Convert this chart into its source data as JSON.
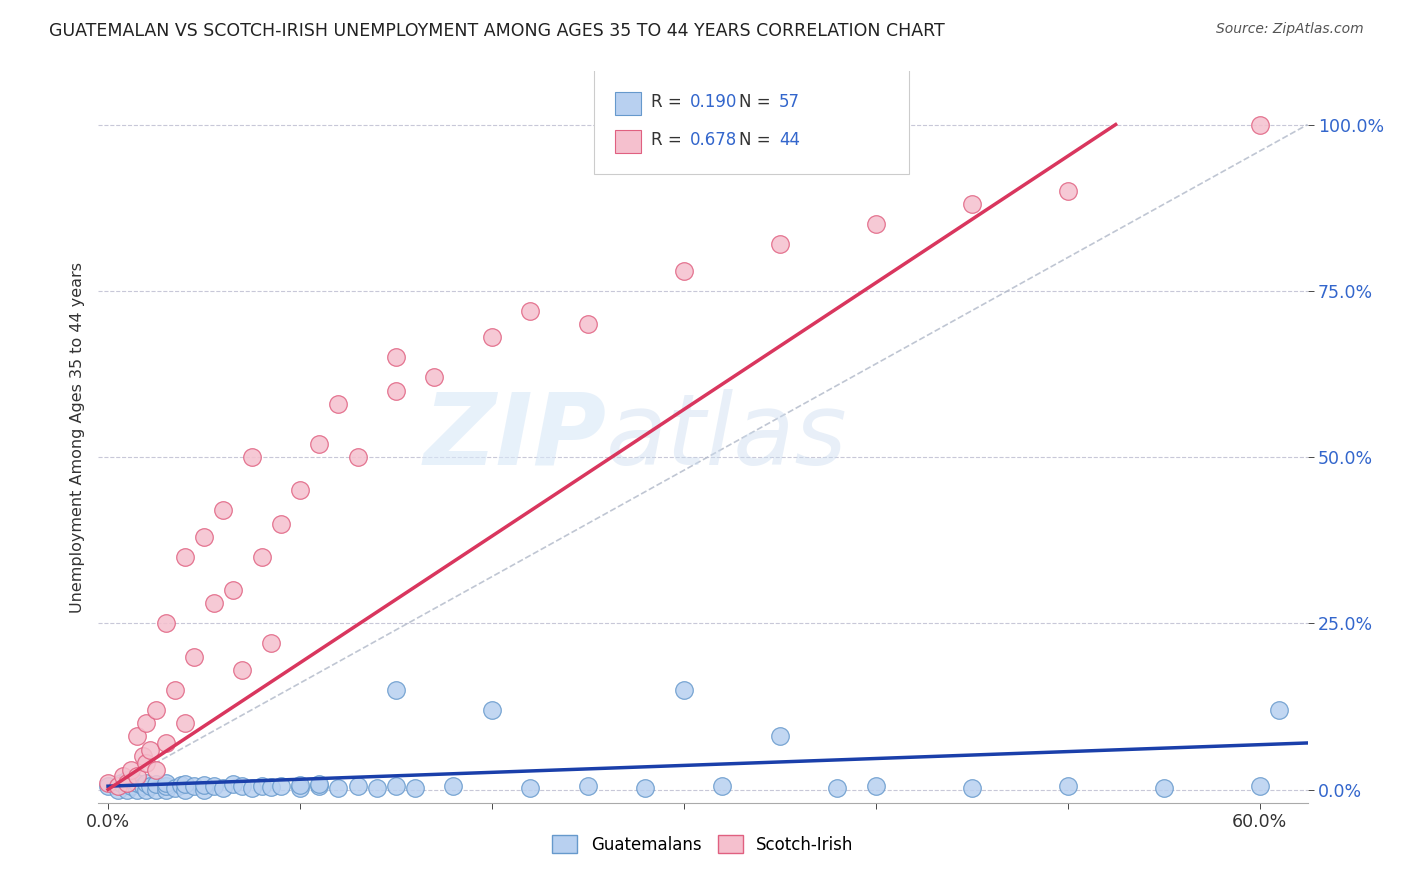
{
  "title": "GUATEMALAN VS SCOTCH-IRISH UNEMPLOYMENT AMONG AGES 35 TO 44 YEARS CORRELATION CHART",
  "source": "Source: ZipAtlas.com",
  "ylabel": "Unemployment Among Ages 35 to 44 years",
  "ytick_labels": [
    "0.0%",
    "25.0%",
    "50.0%",
    "75.0%",
    "100.0%"
  ],
  "ytick_values": [
    0.0,
    0.25,
    0.5,
    0.75,
    1.0
  ],
  "xmin": -0.005,
  "xmax": 0.625,
  "ymin": -0.02,
  "ymax": 1.08,
  "blue_line_color": "#1a3faa",
  "pink_line_color": "#d9365e",
  "diagonal_line_color": "#b0b8c8",
  "scatter_blue_facecolor": "#b8d0f0",
  "scatter_blue_edgecolor": "#6699cc",
  "scatter_pink_facecolor": "#f5c0ce",
  "scatter_pink_edgecolor": "#e06080",
  "background_color": "#ffffff",
  "grid_color": "#c8c8d8",
  "title_color": "#222222",
  "watermark_color": "#ccddf5",
  "blue_R": 0.19,
  "blue_N": 57,
  "pink_R": 0.678,
  "pink_N": 44,
  "blue_line_x": [
    0.0,
    0.625
  ],
  "blue_line_y": [
    0.005,
    0.07
  ],
  "pink_line_x": [
    0.0,
    0.525
  ],
  "pink_line_y": [
    0.0,
    1.0
  ],
  "diag_line_x": [
    0.0,
    0.625
  ],
  "diag_line_y": [
    0.0,
    1.0
  ],
  "blue_scatter_x": [
    0.0,
    0.005,
    0.007,
    0.01,
    0.01,
    0.012,
    0.015,
    0.015,
    0.018,
    0.02,
    0.02,
    0.022,
    0.025,
    0.025,
    0.03,
    0.03,
    0.03,
    0.035,
    0.038,
    0.04,
    0.04,
    0.045,
    0.05,
    0.05,
    0.055,
    0.06,
    0.065,
    0.07,
    0.075,
    0.08,
    0.085,
    0.09,
    0.1,
    0.1,
    0.11,
    0.11,
    0.12,
    0.13,
    0.14,
    0.15,
    0.15,
    0.16,
    0.18,
    0.2,
    0.22,
    0.25,
    0.28,
    0.3,
    0.32,
    0.35,
    0.38,
    0.4,
    0.45,
    0.5,
    0.55,
    0.6,
    0.61
  ],
  "blue_scatter_y": [
    0.005,
    0.0,
    0.01,
    0.0,
    0.015,
    0.005,
    0.0,
    0.01,
    0.005,
    0.0,
    0.01,
    0.005,
    0.0,
    0.008,
    0.0,
    0.005,
    0.01,
    0.003,
    0.007,
    0.0,
    0.008,
    0.005,
    0.0,
    0.007,
    0.005,
    0.003,
    0.008,
    0.005,
    0.003,
    0.006,
    0.004,
    0.005,
    0.003,
    0.007,
    0.005,
    0.008,
    0.003,
    0.005,
    0.003,
    0.15,
    0.005,
    0.003,
    0.005,
    0.12,
    0.003,
    0.005,
    0.003,
    0.15,
    0.005,
    0.08,
    0.003,
    0.005,
    0.003,
    0.005,
    0.003,
    0.005,
    0.12
  ],
  "pink_scatter_x": [
    0.0,
    0.005,
    0.008,
    0.01,
    0.012,
    0.015,
    0.015,
    0.018,
    0.02,
    0.02,
    0.022,
    0.025,
    0.025,
    0.03,
    0.03,
    0.035,
    0.04,
    0.04,
    0.045,
    0.05,
    0.055,
    0.06,
    0.065,
    0.07,
    0.075,
    0.08,
    0.085,
    0.09,
    0.1,
    0.11,
    0.12,
    0.13,
    0.15,
    0.15,
    0.17,
    0.2,
    0.22,
    0.25,
    0.3,
    0.35,
    0.4,
    0.45,
    0.5,
    0.6
  ],
  "pink_scatter_y": [
    0.01,
    0.005,
    0.02,
    0.01,
    0.03,
    0.02,
    0.08,
    0.05,
    0.04,
    0.1,
    0.06,
    0.03,
    0.12,
    0.07,
    0.25,
    0.15,
    0.1,
    0.35,
    0.2,
    0.38,
    0.28,
    0.42,
    0.3,
    0.18,
    0.5,
    0.35,
    0.22,
    0.4,
    0.45,
    0.52,
    0.58,
    0.5,
    0.6,
    0.65,
    0.62,
    0.68,
    0.72,
    0.7,
    0.78,
    0.82,
    0.85,
    0.88,
    0.9,
    1.0
  ],
  "legend_top_R_color": "#3366cc",
  "legend_top_N_color": "#3366cc",
  "ytick_color": "#3366cc",
  "xtick_color": "#333333"
}
